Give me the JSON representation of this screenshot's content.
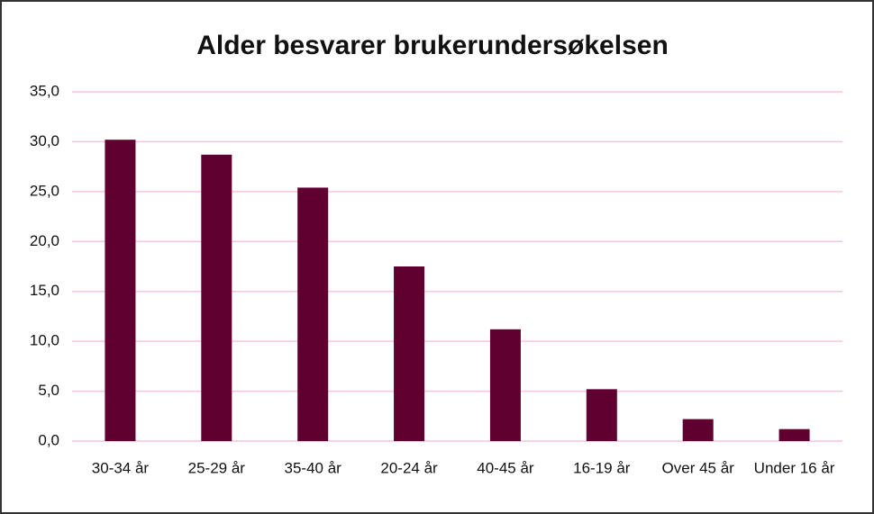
{
  "chart_data": {
    "type": "bar",
    "title": "Alder besvarer brukerundersøkelsen",
    "categories": [
      "30-34 år",
      "25-29 år",
      "35-40 år",
      "20-24 år",
      "40-45 år",
      "16-19 år",
      "Over 45 år",
      "Under 16 år"
    ],
    "values": [
      30.2,
      28.7,
      25.4,
      17.5,
      11.2,
      5.2,
      2.2,
      1.2
    ],
    "color": "#600030",
    "ylim": [
      0,
      35
    ],
    "yticks": [
      {
        "value": 0,
        "label": "0,0"
      },
      {
        "value": 5,
        "label": "5,0"
      },
      {
        "value": 10,
        "label": "10,0"
      },
      {
        "value": 15,
        "label": "15,0"
      },
      {
        "value": 20,
        "label": "20,0"
      },
      {
        "value": 25,
        "label": "25,0"
      },
      {
        "value": 30,
        "label": "30,0"
      },
      {
        "value": 35,
        "label": "35,0"
      }
    ],
    "grid": true,
    "grid_color": "#f7c4e2"
  }
}
